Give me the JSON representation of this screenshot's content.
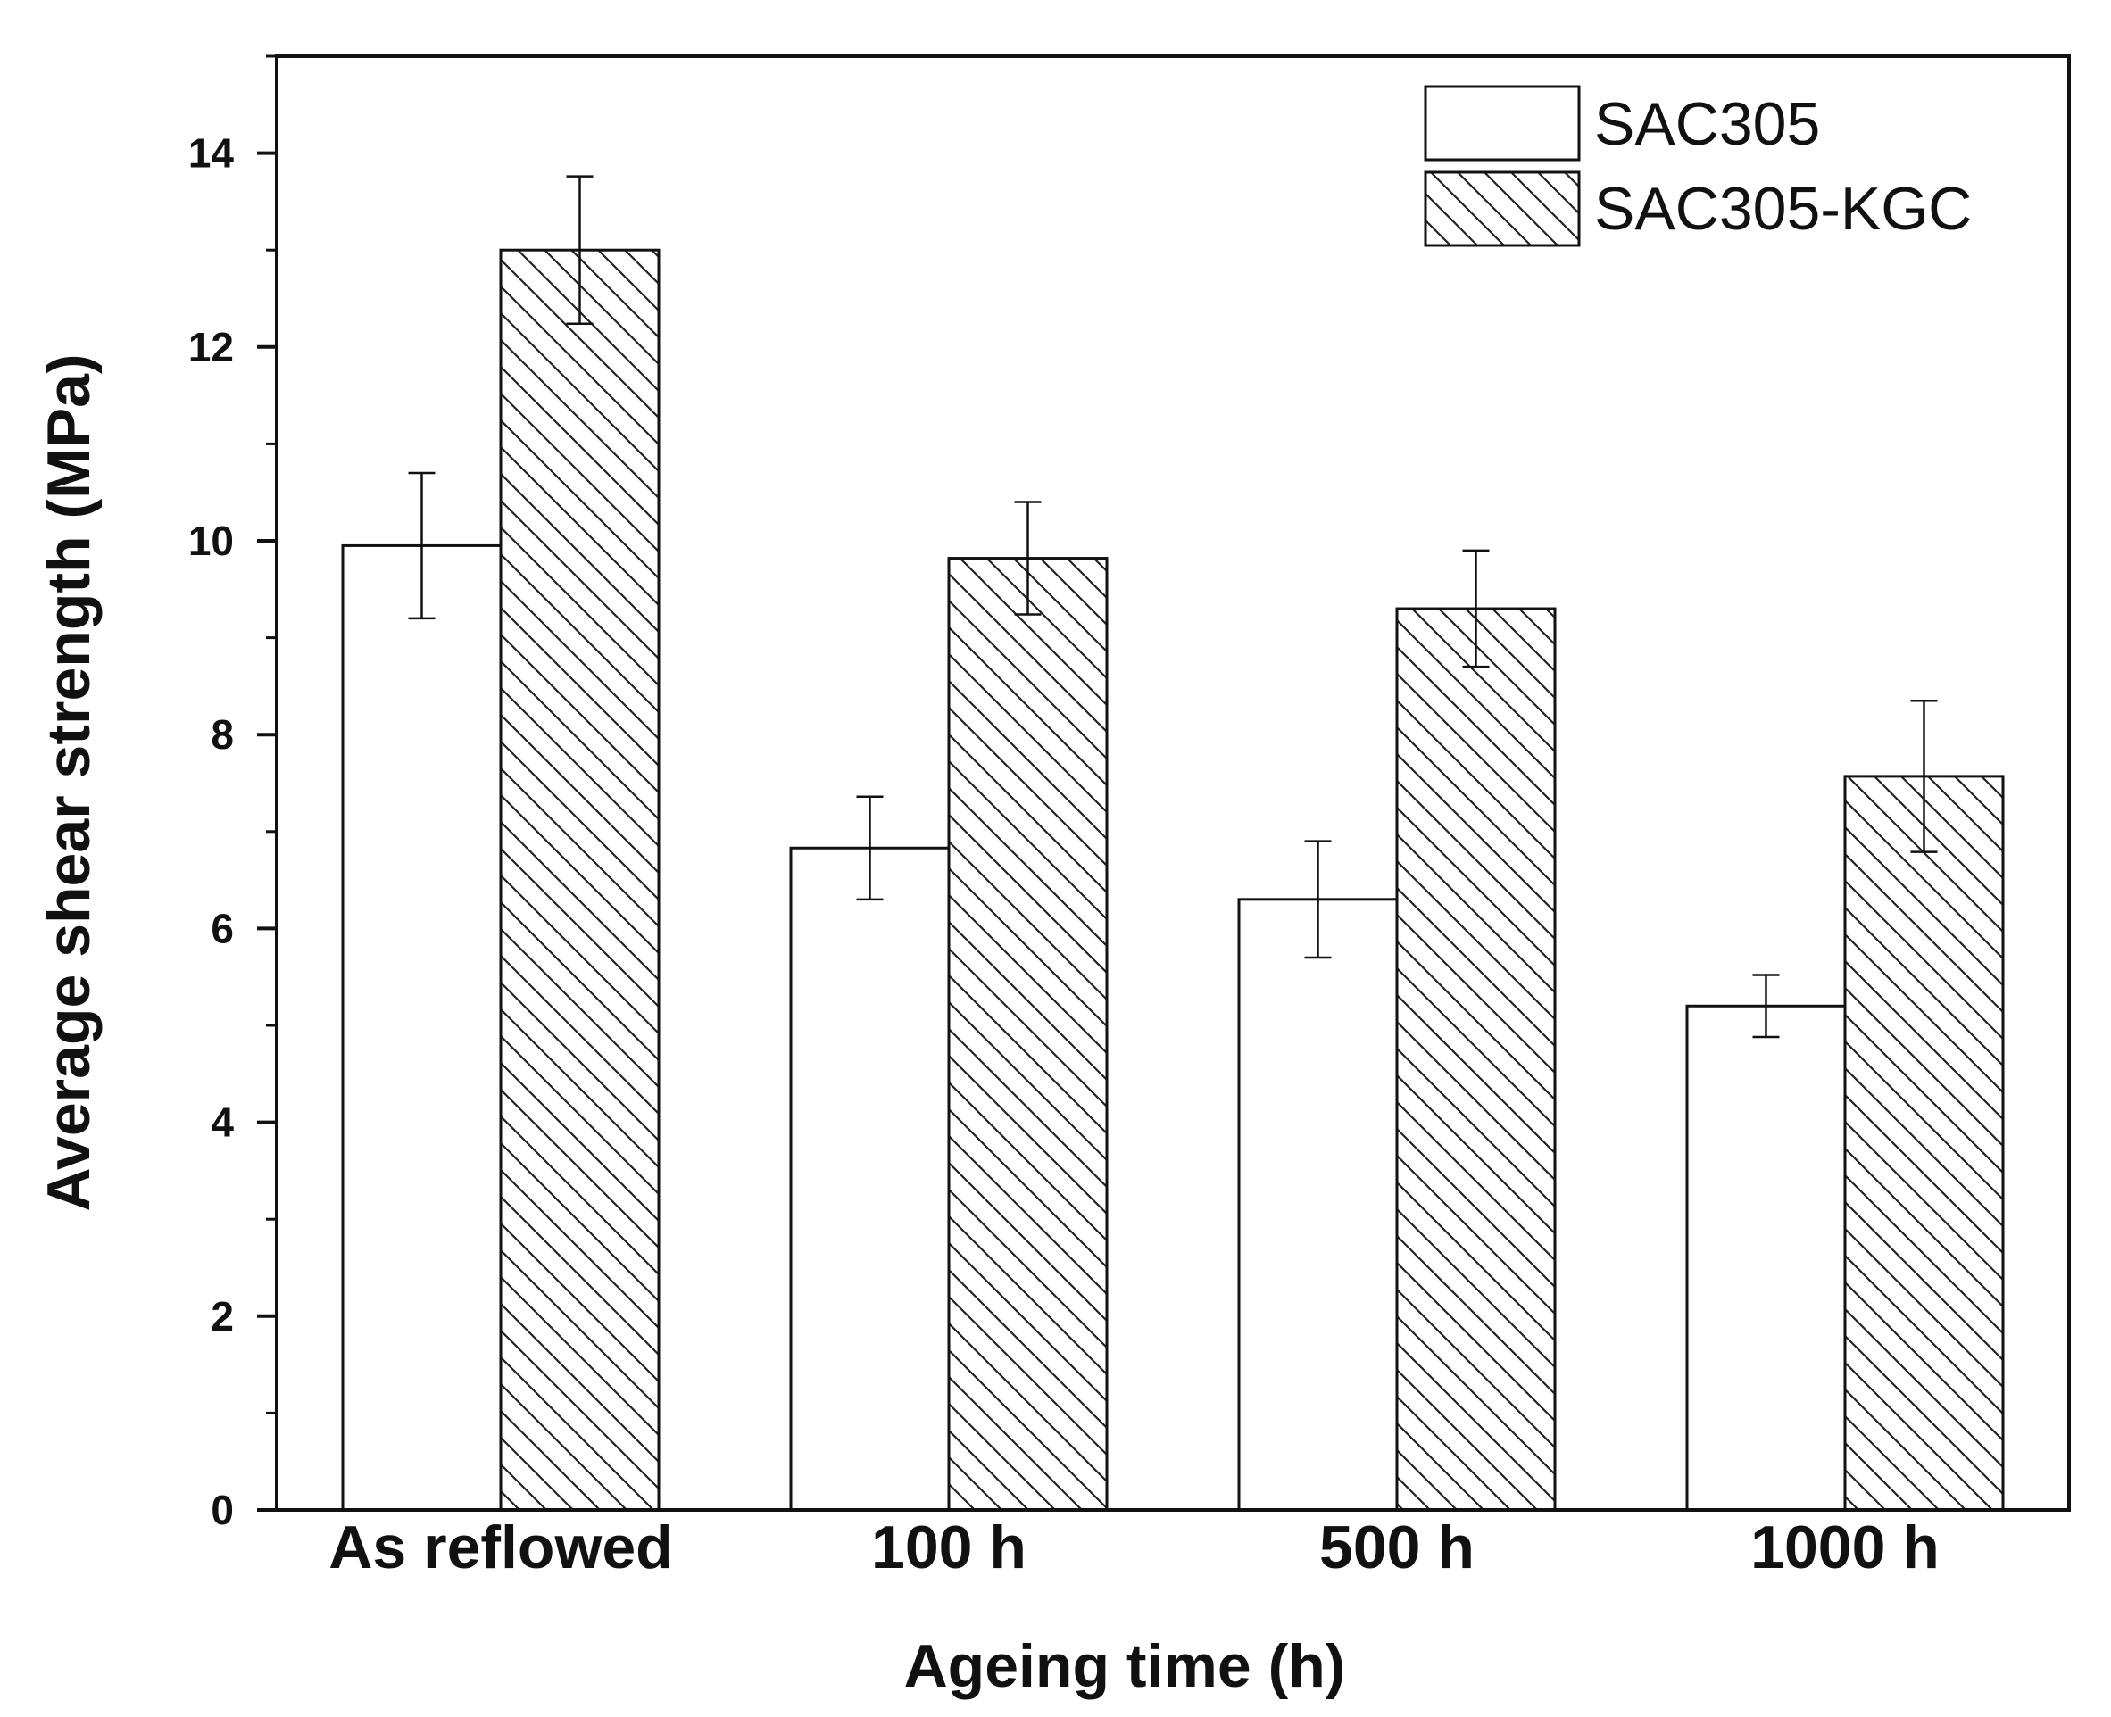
{
  "chart_data": {
    "type": "bar",
    "title": "",
    "xlabel": "Ageing time (h)",
    "ylabel": "Average shear strength (MPa)",
    "ylim": [
      0,
      15
    ],
    "yticks": [
      0,
      2,
      4,
      6,
      8,
      10,
      12,
      14
    ],
    "ytick_labels": [
      "0",
      "2",
      "4",
      "6",
      "8",
      "10",
      "12",
      "14"
    ],
    "categories": [
      "As reflowed",
      "100 h",
      "500 h",
      "1000 h"
    ],
    "series": [
      {
        "name": "SAC305",
        "fill": "none",
        "values": [
          9.95,
          6.83,
          6.3,
          5.2
        ],
        "errors": [
          0.75,
          0.53,
          0.6,
          0.32
        ]
      },
      {
        "name": "SAC305-KGC",
        "fill": "hatched",
        "values": [
          13.0,
          9.82,
          9.3,
          7.57
        ],
        "errors": [
          0.76,
          0.58,
          0.6,
          0.78
        ]
      }
    ],
    "legend_position": "top-right",
    "colors": {
      "stroke": "#111111",
      "background": "#ffffff",
      "hatch": "#222222"
    }
  }
}
